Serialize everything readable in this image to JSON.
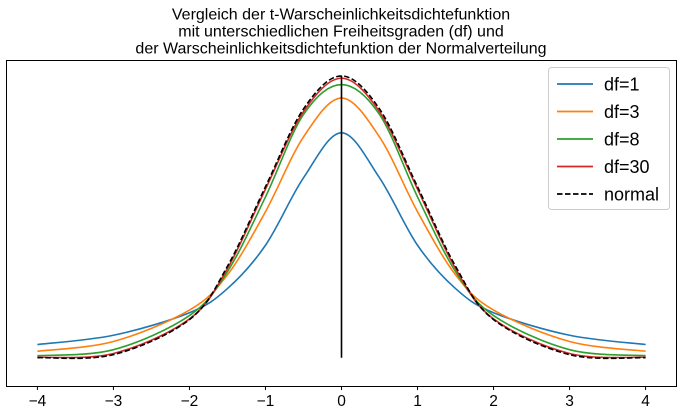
{
  "chart_data": {
    "type": "line",
    "title_lines": [
      "Vergleich der t-Warscheinlichkeitsdichtefunktion",
      "mit unterschiedlichen Freiheitsgraden (df) und",
      "der Warscheinlichkeitsdichtefunktion der Normalverteilung"
    ],
    "xlabel": "",
    "ylabel": "",
    "xlim": [
      -4.4,
      4.4
    ],
    "ylim": [
      -0.04,
      0.42
    ],
    "x_ticks": [
      -4,
      -3,
      -2,
      -1,
      0,
      1,
      2,
      3,
      4
    ],
    "x_tick_labels": [
      "−4",
      "−3",
      "−2",
      "−1",
      "0",
      "1",
      "2",
      "3",
      "4"
    ],
    "x_range": [
      -4,
      4
    ],
    "grid": false,
    "legend_placement": "top-right",
    "vertical_line": {
      "x": 0,
      "y": [
        0,
        0.399
      ],
      "color": "#000000"
    },
    "series": [
      {
        "name": "df=1",
        "color": "#1f77b4",
        "style": "solid",
        "x": [
          -4,
          -3,
          -2,
          -1.5,
          -1,
          -0.5,
          0,
          0.5,
          1,
          1.5,
          2,
          3,
          4
        ],
        "y": [
          0.0187,
          0.0318,
          0.0637,
          0.0979,
          0.1592,
          0.2546,
          0.3183,
          0.2546,
          0.1592,
          0.0979,
          0.0637,
          0.0318,
          0.0187
        ]
      },
      {
        "name": "df=3",
        "color": "#ff7f0e",
        "style": "solid",
        "x": [
          -4,
          -3,
          -2,
          -1.5,
          -1,
          -0.5,
          0,
          0.5,
          1,
          1.5,
          2,
          3,
          4
        ],
        "y": [
          0.0092,
          0.023,
          0.0675,
          0.1174,
          0.2067,
          0.3125,
          0.3676,
          0.3125,
          0.2067,
          0.1174,
          0.0675,
          0.023,
          0.0092
        ]
      },
      {
        "name": "df=8",
        "color": "#2ca02c",
        "style": "solid",
        "x": [
          -4,
          -3,
          -2,
          -1.5,
          -1,
          -0.5,
          0,
          0.5,
          1,
          1.5,
          2,
          3,
          4
        ],
        "y": [
          0.0029,
          0.0114,
          0.0597,
          0.122,
          0.2276,
          0.3443,
          0.3867,
          0.3443,
          0.2276,
          0.122,
          0.0597,
          0.0114,
          0.0029
        ]
      },
      {
        "name": "df=30",
        "color": "#d62728",
        "style": "solid",
        "x": [
          -4,
          -3,
          -2,
          -1.5,
          -1,
          -0.5,
          0,
          0.5,
          1,
          1.5,
          2,
          3,
          4
        ],
        "y": [
          0.0006,
          0.006,
          0.0549,
          0.1263,
          0.2387,
          0.3483,
          0.3956,
          0.3483,
          0.2387,
          0.1263,
          0.0549,
          0.006,
          0.0006
        ]
      },
      {
        "name": "normal",
        "color": "#000000",
        "style": "dashed",
        "x": [
          -4,
          -3,
          -2,
          -1.5,
          -1,
          -0.5,
          0,
          0.5,
          1,
          1.5,
          2,
          3,
          4
        ],
        "y": [
          0.0001,
          0.0044,
          0.054,
          0.1295,
          0.242,
          0.3521,
          0.3989,
          0.3521,
          0.242,
          0.1295,
          0.054,
          0.0044,
          0.0001
        ]
      }
    ]
  }
}
